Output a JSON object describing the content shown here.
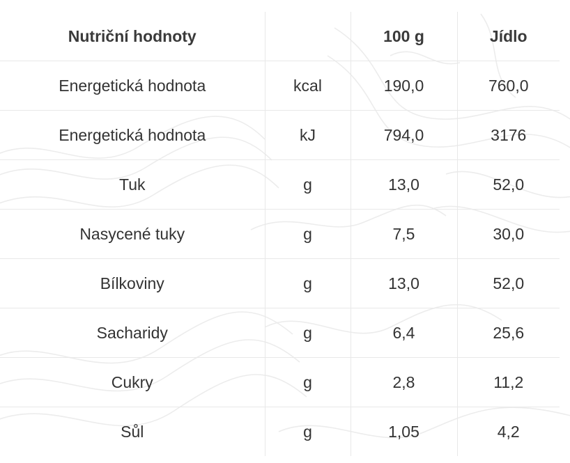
{
  "colors": {
    "text": "#333333",
    "grid": "#e8e8e8",
    "background": "#ffffff"
  },
  "table": {
    "headers": [
      "Nutriční hodnoty",
      "",
      "100 g",
      "Jídlo"
    ],
    "rows": [
      {
        "name": "Energetická hodnota",
        "unit": "kcal",
        "per100": "190,0",
        "meal": "760,0"
      },
      {
        "name": "Energetická hodnota",
        "unit": "kJ",
        "per100": "794,0",
        "meal": "3176"
      },
      {
        "name": "Tuk",
        "unit": "g",
        "per100": "13,0",
        "meal": "52,0"
      },
      {
        "name": "Nasycené tuky",
        "unit": "g",
        "per100": "7,5",
        "meal": "30,0"
      },
      {
        "name": "Bílkoviny",
        "unit": "g",
        "per100": "13,0",
        "meal": "52,0"
      },
      {
        "name": "Sacharidy",
        "unit": "g",
        "per100": "6,4",
        "meal": "25,6"
      },
      {
        "name": "Cukry",
        "unit": "g",
        "per100": "2,8",
        "meal": "11,2"
      },
      {
        "name": "Sůl",
        "unit": "g",
        "per100": "1,05",
        "meal": "4,2"
      }
    ]
  }
}
